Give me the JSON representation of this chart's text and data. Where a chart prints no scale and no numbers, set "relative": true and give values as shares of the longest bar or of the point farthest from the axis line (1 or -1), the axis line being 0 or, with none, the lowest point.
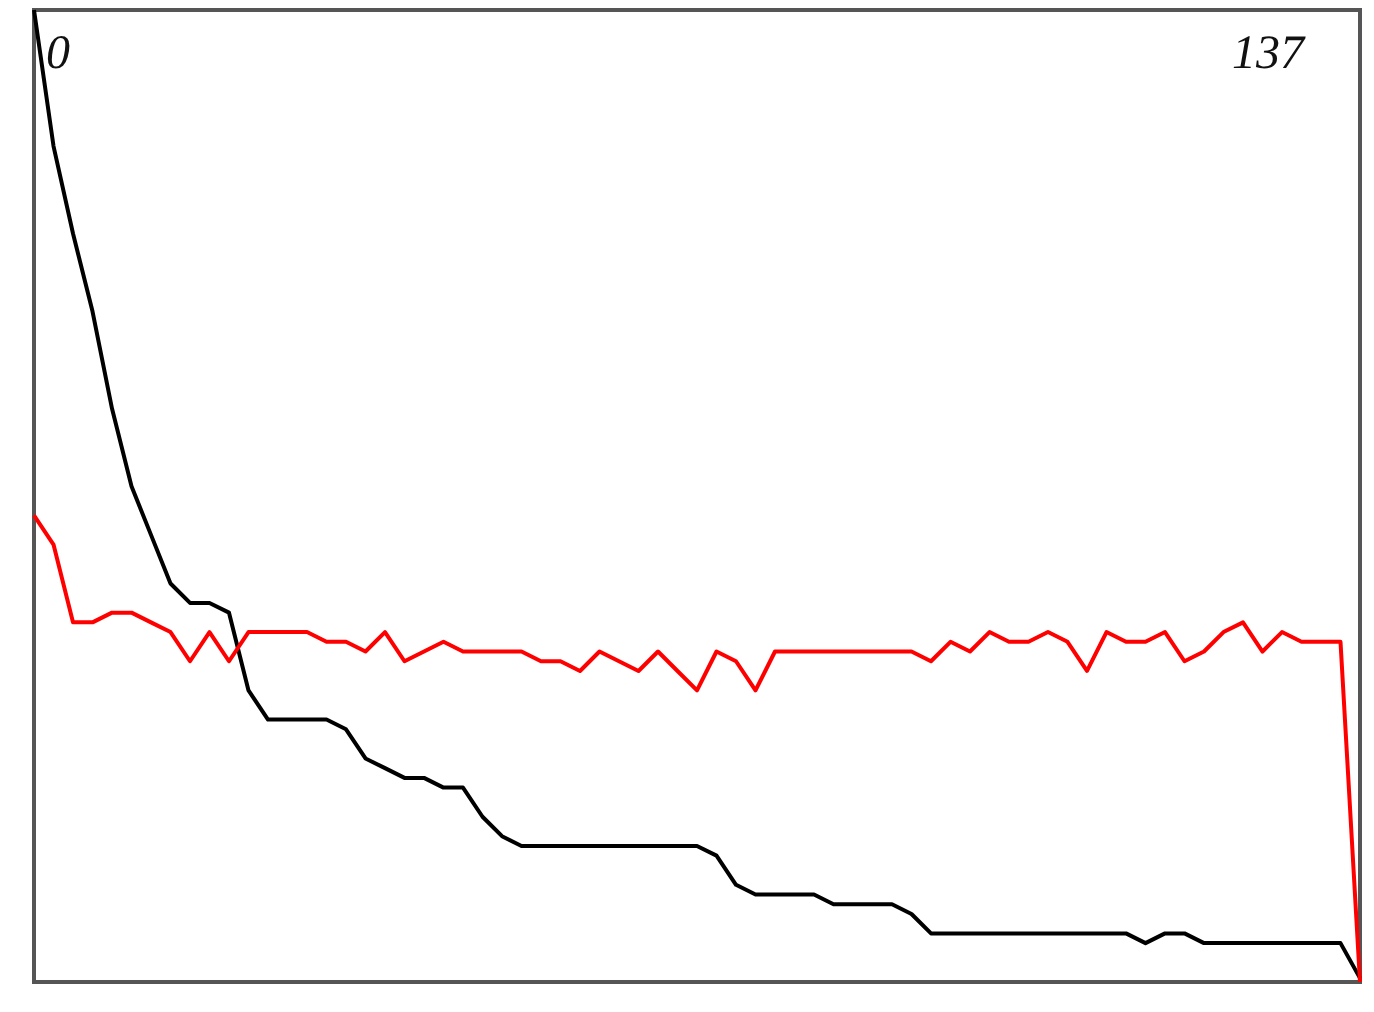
{
  "chart_data": {
    "type": "line",
    "relative": true,
    "annotations": [
      "0",
      "137"
    ],
    "categories": [
      null,
      null,
      null,
      null,
      null,
      null,
      null,
      null,
      null,
      null,
      null,
      null,
      null,
      null,
      null,
      null,
      null,
      null,
      null,
      null,
      null,
      null,
      null,
      null,
      null,
      null,
      null,
      null,
      null,
      null,
      null,
      null,
      null,
      null,
      null,
      null,
      null,
      null,
      null,
      null,
      null,
      null,
      null,
      null,
      null,
      null,
      null,
      null,
      null,
      null,
      null,
      null,
      null,
      null,
      null,
      null,
      null,
      null,
      null,
      null,
      null,
      null,
      null,
      null,
      null,
      null,
      null,
      null,
      null
    ],
    "series": [
      {
        "color": "#000000",
        "values": [
          1,
          0.86,
          0.77,
          0.69,
          0.59,
          0.51,
          0.46,
          0.41,
          0.39,
          0.39,
          0.38,
          0.3,
          0.27,
          0.27,
          0.27,
          0.27,
          0.26,
          0.23,
          0.22,
          0.21,
          0.21,
          0.2,
          0.2,
          0.17,
          0.15,
          0.14,
          0.14,
          0.14,
          0.14,
          0.14,
          0.14,
          0.14,
          0.14,
          0.14,
          0.14,
          0.13,
          0.1,
          0.09,
          0.09,
          0.09,
          0.09,
          0.08,
          0.08,
          0.08,
          0.08,
          0.07,
          0.05,
          0.05,
          0.05,
          0.05,
          0.05,
          0.05,
          0.05,
          0.05,
          0.05,
          0.05,
          0.05,
          0.04,
          0.05,
          0.05,
          0.04,
          0.04,
          0.04,
          0.04,
          0.04,
          0.04,
          0.04,
          0.04,
          0.004
        ]
      },
      {
        "color": "#ff0000",
        "values": [
          0.48,
          0.45,
          0.37,
          0.37,
          0.38,
          0.38,
          0.37,
          0.36,
          0.33,
          0.36,
          0.33,
          0.36,
          0.36,
          0.36,
          0.36,
          0.35,
          0.35,
          0.34,
          0.36,
          0.33,
          0.34,
          0.35,
          0.34,
          0.34,
          0.34,
          0.34,
          0.33,
          0.33,
          0.32,
          0.34,
          0.33,
          0.32,
          0.34,
          0.32,
          0.3,
          0.34,
          0.33,
          0.3,
          0.34,
          0.34,
          0.34,
          0.34,
          0.34,
          0.34,
          0.34,
          0.34,
          0.33,
          0.35,
          0.34,
          0.36,
          0.35,
          0.35,
          0.36,
          0.35,
          0.32,
          0.36,
          0.35,
          0.35,
          0.36,
          0.33,
          0.34,
          0.36,
          0.37,
          0.34,
          0.36,
          0.35,
          0.35,
          0.35,
          0
        ]
      }
    ]
  }
}
